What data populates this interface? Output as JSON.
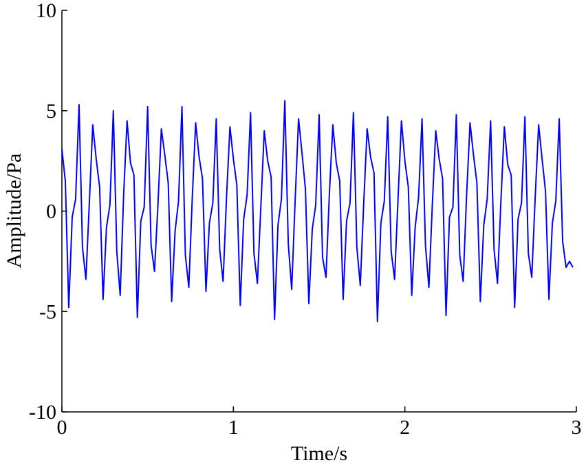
{
  "chart_data": {
    "type": "line",
    "xlabel": "Time/s",
    "ylabel": "Amplitude/Pa",
    "xlim": [
      0,
      3
    ],
    "xticks": [
      0,
      1,
      2,
      3
    ],
    "ylim": [
      -10,
      10
    ],
    "yticks": [
      -10,
      -5,
      0,
      5,
      10
    ],
    "series": [
      {
        "color": "#0000ff",
        "x": [
          0,
          0.02,
          0.04,
          0.06,
          0.08,
          0.1,
          0.12,
          0.14,
          0.16,
          0.18,
          0.2,
          0.22,
          0.24,
          0.26,
          0.28,
          0.3,
          0.32,
          0.34,
          0.36,
          0.38,
          0.4,
          0.42,
          0.44,
          0.46,
          0.48,
          0.5,
          0.52,
          0.54,
          0.56,
          0.58,
          0.6,
          0.62,
          0.64,
          0.66,
          0.68,
          0.7,
          0.72,
          0.74,
          0.76,
          0.78,
          0.8,
          0.82,
          0.84,
          0.86,
          0.88,
          0.9,
          0.92,
          0.94,
          0.96,
          0.98,
          1,
          1.02,
          1.04,
          1.06,
          1.08,
          1.1,
          1.12,
          1.14,
          1.16,
          1.18,
          1.2,
          1.22,
          1.24,
          1.26,
          1.28,
          1.3,
          1.32,
          1.34,
          1.36,
          1.38,
          1.4,
          1.42,
          1.44,
          1.46,
          1.48,
          1.5,
          1.52,
          1.54,
          1.56,
          1.58,
          1.6,
          1.62,
          1.64,
          1.66,
          1.68,
          1.7,
          1.72,
          1.74,
          1.76,
          1.78,
          1.8,
          1.82,
          1.84,
          1.86,
          1.88,
          1.9,
          1.92,
          1.94,
          1.96,
          1.98,
          2,
          2.02,
          2.04,
          2.06,
          2.08,
          2.1,
          2.12,
          2.14,
          2.16,
          2.18,
          2.2,
          2.22,
          2.24,
          2.26,
          2.28,
          2.3,
          2.32,
          2.34,
          2.36,
          2.38,
          2.4,
          2.42,
          2.44,
          2.46,
          2.48,
          2.5,
          2.52,
          2.54,
          2.56,
          2.58,
          2.6,
          2.62,
          2.64,
          2.66,
          2.68,
          2.7,
          2.72,
          2.74,
          2.76,
          2.78,
          2.8,
          2.82,
          2.84,
          2.86,
          2.88,
          2.9,
          2.92,
          2.94,
          2.96,
          2.98
        ],
        "values": [
          3.1,
          1.5,
          -4.8,
          -0.3,
          0.6,
          5.3,
          -1.8,
          -3.4,
          0.4,
          4.3,
          2.6,
          1.2,
          -4.4,
          -0.8,
          0.3,
          5.0,
          -2.0,
          -4.2,
          0.8,
          4.5,
          2.4,
          1.8,
          -5.3,
          -0.5,
          0.2,
          5.2,
          -1.7,
          -3.0,
          0.3,
          4.1,
          2.8,
          1.4,
          -4.5,
          -1.0,
          0.5,
          5.2,
          -2.2,
          -3.8,
          0.6,
          4.4,
          2.7,
          1.6,
          -4.0,
          -0.6,
          0.4,
          4.6,
          -1.9,
          -3.5,
          0.7,
          4.2,
          2.6,
          1.3,
          -4.7,
          -0.4,
          0.8,
          4.9,
          -2.1,
          -3.6,
          0.2,
          4.0,
          2.5,
          1.7,
          -5.4,
          -0.7,
          0.6,
          5.5,
          -1.6,
          -3.9,
          0.5,
          4.6,
          2.9,
          1.1,
          -4.6,
          -0.9,
          0.3,
          4.8,
          -2.3,
          -3.3,
          0.9,
          4.3,
          2.4,
          1.5,
          -4.4,
          -0.5,
          0.4,
          4.9,
          -1.8,
          -3.7,
          0.4,
          4.1,
          2.7,
          1.9,
          -5.5,
          -0.6,
          0.5,
          4.7,
          -2.0,
          -3.4,
          0.6,
          4.5,
          2.5,
          1.2,
          -4.2,
          -0.8,
          0.7,
          4.6,
          -1.7,
          -3.8,
          0.3,
          4.0,
          2.6,
          1.6,
          -5.2,
          -0.3,
          0.2,
          4.8,
          -2.2,
          -3.5,
          0.8,
          4.4,
          2.8,
          1.4,
          -4.5,
          -0.7,
          0.6,
          4.5,
          -1.9,
          -3.6,
          0.5,
          4.2,
          2.3,
          1.8,
          -4.8,
          -0.4,
          0.4,
          4.7,
          -2.1,
          -3.3,
          0.7,
          4.3,
          2.6,
          1.0,
          -4.4,
          -0.6,
          0.5,
          4.6,
          -1.5,
          -2.8,
          -2.5,
          -2.8
        ]
      }
    ]
  }
}
